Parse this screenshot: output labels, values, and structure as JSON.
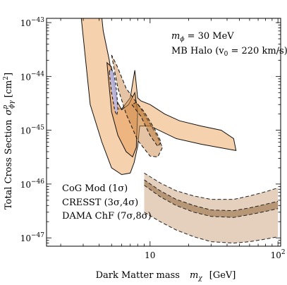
{
  "chart_data": {
    "type": "area",
    "xlabel": "Dark Matter mass   mχ  [GeV]",
    "xlabel_main": "Dark Matter mass",
    "xlabel_var": "m",
    "xlabel_sub": "χ",
    "xlabel_unit": "[GeV]",
    "ylabel": "Total Cross Section  σᵖϕγ [cm²]",
    "ylabel_main": "Total Cross Section",
    "ylabel_var": "σ",
    "ylabel_sup": "p",
    "ylabel_sub": "ϕγ",
    "ylabel_unit": "[cm",
    "ylabel_unit_sup": "2",
    "ylabel_unit_close": "]",
    "x_scale": "log",
    "y_scale": "log",
    "xlim": [
      1.55,
      105
    ],
    "ylim": [
      7e-48,
      1.2e-43
    ],
    "xticks": [
      {
        "value": 10,
        "label": "10"
      },
      {
        "value": 100,
        "label": "10",
        "sup": "2"
      }
    ],
    "yticks": [
      {
        "value": 1e-43,
        "label": "10",
        "sup": "−43"
      },
      {
        "value": 1e-44,
        "label": "10",
        "sup": "−44"
      },
      {
        "value": 1e-45,
        "label": "10",
        "sup": "−45"
      },
      {
        "value": 1e-46,
        "label": "10",
        "sup": "−46"
      },
      {
        "value": 1e-47,
        "label": "10",
        "sup": "−47"
      }
    ],
    "annotations": [
      {
        "var": "m",
        "sub": "ϕ",
        "rest": " = 30 MeV"
      },
      {
        "text": "MB Halo (v",
        "sub": "0",
        "rest": " = 220 km/s)"
      }
    ],
    "legend_position": "bottom-left",
    "series": [
      {
        "name": "CoG Mod  (1σ)",
        "color": "#3333cc",
        "fill": "#b8b8e8",
        "style": "solid",
        "level": "1σ",
        "points": [
          [
            4.8,
            1.2e-44
          ],
          [
            5.0,
            5e-45
          ],
          [
            5.3,
            2.3e-45
          ],
          [
            5.5,
            1.9e-45
          ],
          [
            5.6,
            2.4e-45
          ],
          [
            5.5,
            5e-45
          ],
          [
            5.2,
            1.2e-44
          ],
          [
            4.9,
            1.4e-44
          ]
        ]
      },
      {
        "name": "CRESST  (3σ,4σ)",
        "color": "#8b5a2b",
        "fill": "#cdaa86",
        "style": "dashed",
        "band_inner": {
          "upper": [
            [
              9,
              1.2e-46
            ],
            [
              12,
              7.5e-47
            ],
            [
              16,
              5.2e-47
            ],
            [
              22,
              4e-47
            ],
            [
              30,
              3.3e-47
            ],
            [
              45,
              3.2e-47
            ],
            [
              60,
              3.6e-47
            ],
            [
              80,
              4.2e-47
            ],
            [
              100,
              4.8e-47
            ]
          ],
          "lower": [
            [
              9,
              9.5e-47
            ],
            [
              12,
              5.8e-47
            ],
            [
              16,
              4e-47
            ],
            [
              22,
              3e-47
            ],
            [
              30,
              2.5e-47
            ],
            [
              45,
              2.4e-47
            ],
            [
              60,
              2.7e-47
            ],
            [
              80,
              3.1e-47
            ],
            [
              100,
              3.5e-47
            ]
          ]
        },
        "band_outer": {
          "upper": [
            [
              9,
              1.6e-46
            ],
            [
              12,
              1.05e-46
            ],
            [
              16,
              7.5e-47
            ],
            [
              22,
              6e-47
            ],
            [
              30,
              5.2e-47
            ],
            [
              45,
              5.2e-47
            ],
            [
              60,
              6e-47
            ],
            [
              80,
              7.2e-47
            ],
            [
              100,
              8.5e-47
            ]
          ],
          "lower": [
            [
              9,
              3e-47
            ],
            [
              12,
              2e-47
            ],
            [
              16,
              1.4e-47
            ],
            [
              22,
              1.05e-47
            ],
            [
              30,
              8.5e-48
            ],
            [
              45,
              8e-48
            ],
            [
              60,
              8.5e-48
            ],
            [
              80,
              9.5e-48
            ],
            [
              100,
              1.05e-47
            ]
          ]
        },
        "island_outer": [
          [
            5.0,
            2.5e-44
          ],
          [
            5.6,
            6e-45
          ],
          [
            6.5,
            2e-45
          ],
          [
            8.0,
            6.5e-46
          ],
          [
            10.0,
            3.3e-46
          ],
          [
            11.5,
            3.2e-46
          ],
          [
            12.5,
            4.8e-46
          ],
          [
            11,
            9e-46
          ],
          [
            8.5,
            2.5e-45
          ],
          [
            6.5,
            6e-45
          ],
          [
            5.5,
            1.6e-44
          ]
        ],
        "island_inner": [
          [
            7.2,
            3e-45
          ],
          [
            8.5,
            1.8e-45
          ],
          [
            10,
            8e-46
          ],
          [
            11.5,
            5e-46
          ],
          [
            12.2,
            6e-46
          ],
          [
            11,
            1e-45
          ],
          [
            9,
            2.2e-45
          ],
          [
            7.8,
            3.3e-45
          ]
        ]
      },
      {
        "name": "DAMA ChF (7σ,8σ)",
        "color": "#e07b00",
        "fill": "#f3c291",
        "style": "solid",
        "region_outer": [
          [
            2.9,
            1.2e-43
          ],
          [
            3.4,
            3e-45
          ],
          [
            4.2,
            6e-46
          ],
          [
            5.0,
            2e-46
          ],
          [
            6.0,
            1.5e-46
          ],
          [
            7.0,
            1.6e-46
          ],
          [
            7.5,
            2.5e-46
          ],
          [
            8.0,
            5e-46
          ],
          [
            8.3,
            1.2e-45
          ],
          [
            10,
            1.2e-45
          ],
          [
            16,
            7e-46
          ],
          [
            25,
            5.5e-46
          ],
          [
            40,
            4.5e-46
          ],
          [
            47,
            4.2e-46
          ],
          [
            45,
            7e-46
          ],
          [
            36,
            1e-45
          ],
          [
            25,
            1.2e-45
          ],
          [
            17,
            1.5e-45
          ],
          [
            13,
            2e-45
          ],
          [
            10,
            3e-45
          ],
          [
            8.5,
            3.5e-45
          ],
          [
            8.0,
            4e-45
          ],
          [
            7.6,
            1.3e-44
          ],
          [
            7.4,
            9e-45
          ],
          [
            7.0,
            4e-45
          ],
          [
            6.0,
            2.5e-45
          ],
          [
            5.6,
            2.5e-45
          ],
          [
            5.2,
            6e-45
          ],
          [
            4.8,
            2e-44
          ],
          [
            4.3,
            7e-44
          ],
          [
            4.2,
            1.2e-43
          ]
        ],
        "region_inner": [
          [
            4.6,
            1.8e-44
          ],
          [
            5.0,
            2.2e-45
          ],
          [
            5.6,
            8e-46
          ],
          [
            6.5,
            4e-46
          ],
          [
            7.3,
            3.2e-46
          ],
          [
            7.8,
            4.8e-46
          ],
          [
            8.0,
            2.2e-45
          ],
          [
            7.6,
            5e-45
          ],
          [
            6.8,
            3e-45
          ],
          [
            6.0,
            2.4e-45
          ],
          [
            5.5,
            3.5e-45
          ],
          [
            5.0,
            1.5e-44
          ]
        ]
      }
    ]
  }
}
